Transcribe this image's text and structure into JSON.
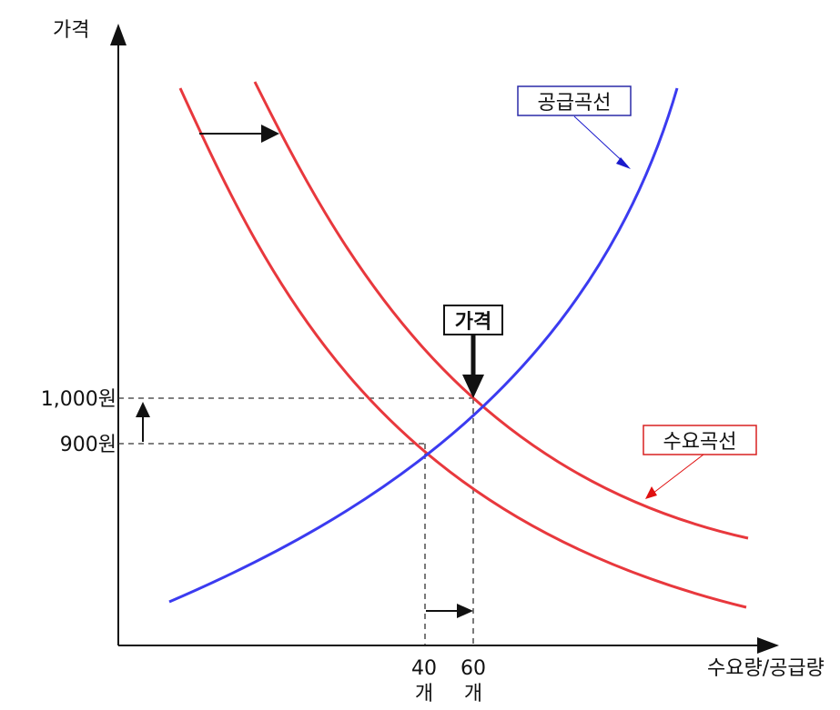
{
  "y_axis_label": "가격",
  "x_axis_label": "수요량/공급량",
  "supply_label": "공급곡선",
  "demand_label": "수요곡선",
  "price_callout": "가격",
  "price_ticks": [
    "1,000원",
    "900원"
  ],
  "quantity_ticks": [
    {
      "value": "40",
      "unit": "개"
    },
    {
      "value": "60",
      "unit": "개"
    }
  ],
  "colors": {
    "supply": "#3b3bf0",
    "demand": "#e8383d",
    "axis": "#111111",
    "supply_box_border": "#2a2aa8",
    "demand_box_border": "#d82020"
  }
}
